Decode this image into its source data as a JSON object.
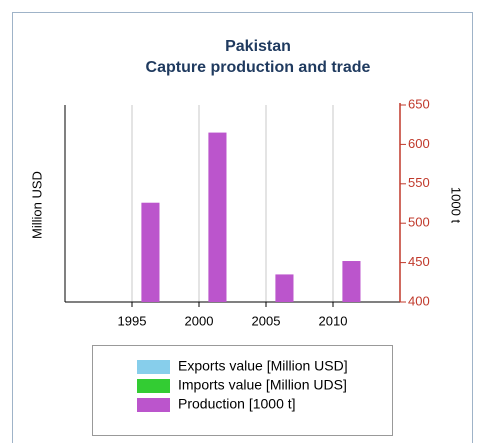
{
  "chart_data": {
    "type": "bar",
    "title": "Pakistan",
    "subtitle": "Capture production and trade",
    "ylabel": "Million USD",
    "y2label": "1000 t",
    "x": [
      1996,
      2001,
      2006,
      2011
    ],
    "xlim": [
      1990,
      2015
    ],
    "xticks": [
      1995,
      2000,
      2005,
      2010
    ],
    "y2lim": [
      400,
      650
    ],
    "y2ticks": [
      400,
      450,
      500,
      550,
      600,
      650
    ],
    "grid": true,
    "legend": "bottom",
    "series": [
      {
        "name": "Exports value [Million USD]",
        "color": "#87ceeb",
        "values": [
          null,
          null,
          null,
          null
        ]
      },
      {
        "name": "Imports value [Million UDS]",
        "color": "#33cc33",
        "values": [
          null,
          null,
          null,
          null
        ]
      },
      {
        "name": "Production [1000 t]",
        "color": "#bb55cc",
        "axis": "y2",
        "values": [
          526,
          615,
          435,
          452
        ]
      }
    ]
  }
}
